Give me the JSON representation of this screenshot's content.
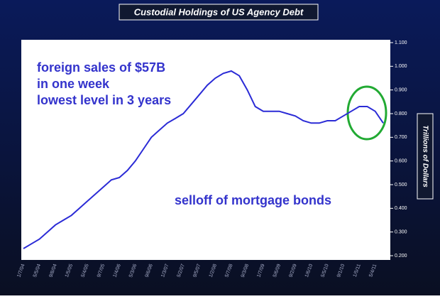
{
  "chart_data": {
    "type": "line",
    "title": "Custodial Holdings of US Agency Debt",
    "y_axis_label": "Trillions of Dollars",
    "annotations": [
      "foreign sales of $57B",
      "in one week",
      "lowest level in 3 years",
      "selloff of mortgage bonds"
    ],
    "categories": [
      "1/7/04",
      null,
      "5/5/04",
      null,
      "9/8/04",
      null,
      "1/5/05",
      null,
      "5/4/05",
      null,
      "9/7/05",
      null,
      "1/4/06",
      null,
      "5/3/06",
      null,
      "9/6/06",
      null,
      "1/3/07",
      null,
      "5/2/07",
      null,
      "9/5/07",
      null,
      "1/2/08",
      null,
      "5/7/08",
      null,
      "9/3/08",
      null,
      "1/7/09",
      null,
      "5/6/09",
      null,
      "9/2/09",
      null,
      "1/6/10",
      null,
      "5/5/10",
      null,
      "9/1/10",
      null,
      "1/5/11",
      null,
      "5/4/11",
      null
    ],
    "series": [
      {
        "name": "Custodial Holdings",
        "color": "#2b2bd6",
        "values": [
          0.23,
          0.25,
          0.27,
          0.3,
          0.33,
          0.35,
          0.37,
          0.4,
          0.43,
          0.46,
          0.49,
          0.52,
          0.53,
          0.56,
          0.6,
          0.65,
          0.7,
          0.73,
          0.76,
          0.78,
          0.8,
          0.84,
          0.88,
          0.92,
          0.95,
          0.97,
          0.98,
          0.96,
          0.9,
          0.83,
          0.81,
          0.81,
          0.81,
          0.8,
          0.79,
          0.77,
          0.76,
          0.76,
          0.77,
          0.77,
          0.79,
          0.81,
          0.83,
          0.83,
          0.81,
          0.76
        ]
      }
    ],
    "ylim": [
      0.2,
      1.1
    ],
    "yticks": [
      {
        "value": 0.2,
        "label": "0.200"
      },
      {
        "value": 0.3,
        "label": "0.300"
      },
      {
        "value": 0.4,
        "label": "0.400"
      },
      {
        "value": 0.5,
        "label": "0.500"
      },
      {
        "value": 0.6,
        "label": "0.600"
      },
      {
        "value": 0.7,
        "label": "0.700"
      },
      {
        "value": 0.8,
        "label": "0.800"
      },
      {
        "value": 0.9,
        "label": "0.900"
      },
      {
        "value": 1.0,
        "label": "1.000"
      },
      {
        "value": 1.1,
        "label": "1.100"
      }
    ],
    "y_axis_side": "right",
    "grid": false
  }
}
